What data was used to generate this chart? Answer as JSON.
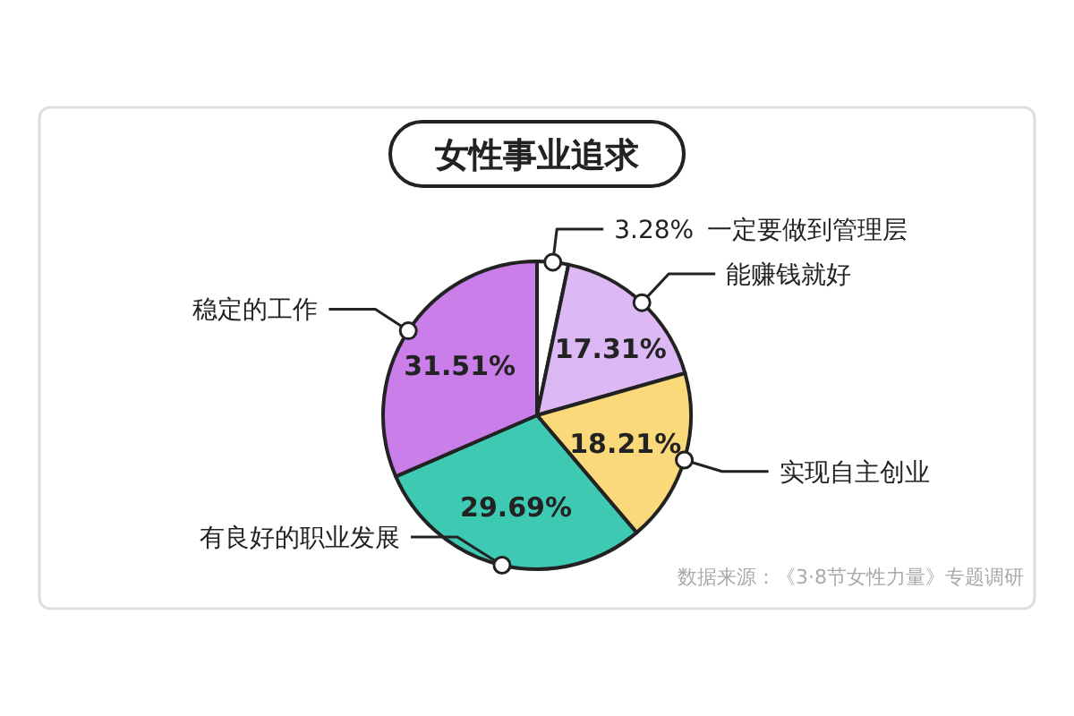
{
  "chart_data": {
    "type": "pie",
    "title": "女性事业追求",
    "categories": [
      "一定要做到管理层",
      "能赚钱就好",
      "实现自主创业",
      "有良好的职业发展",
      "稳定的工作"
    ],
    "values": [
      3.28,
      17.31,
      18.21,
      29.69,
      31.51
    ],
    "value_labels": [
      "3.28%",
      "17.31%",
      "18.21%",
      "29.69%",
      "31.51%"
    ],
    "colors": [
      "#ffffff",
      "#dcb8f4",
      "#f9d97a",
      "#3ec9b2",
      "#c97eea"
    ],
    "annotations": [
      "数据来源：《3·8节女性力量》专题调研"
    ]
  }
}
